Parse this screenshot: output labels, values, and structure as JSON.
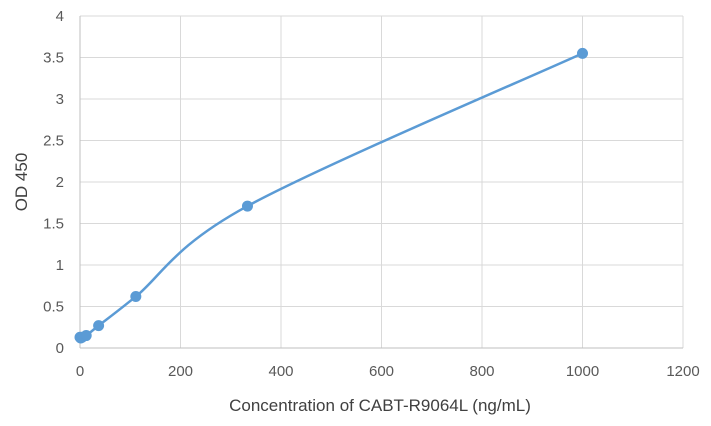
{
  "chart_data": {
    "type": "scatter",
    "xlabel": "Concentration of CABT-R9064L (ng/mL)",
    "ylabel": "OD 450",
    "xlim": [
      0,
      1200
    ],
    "ylim": [
      0,
      4
    ],
    "x_ticks": [
      0,
      200,
      400,
      600,
      800,
      1000,
      1200
    ],
    "y_ticks": [
      0,
      0.5,
      1,
      1.5,
      2,
      2.5,
      3,
      3.5,
      4
    ],
    "y_tick_labels": [
      "0",
      "0.5",
      "1",
      "1.5",
      "2",
      "2.5",
      "3",
      "3.5",
      "4"
    ],
    "grid": true,
    "line": "smooth",
    "series": [
      {
        "color": "#5b9bd5",
        "x": [
          0,
          1.37,
          4.12,
          12.35,
          37.04,
          111.1,
          333.3,
          1000
        ],
        "y": [
          0.13,
          0.12,
          0.13,
          0.15,
          0.27,
          0.62,
          1.71,
          3.55
        ]
      }
    ]
  }
}
